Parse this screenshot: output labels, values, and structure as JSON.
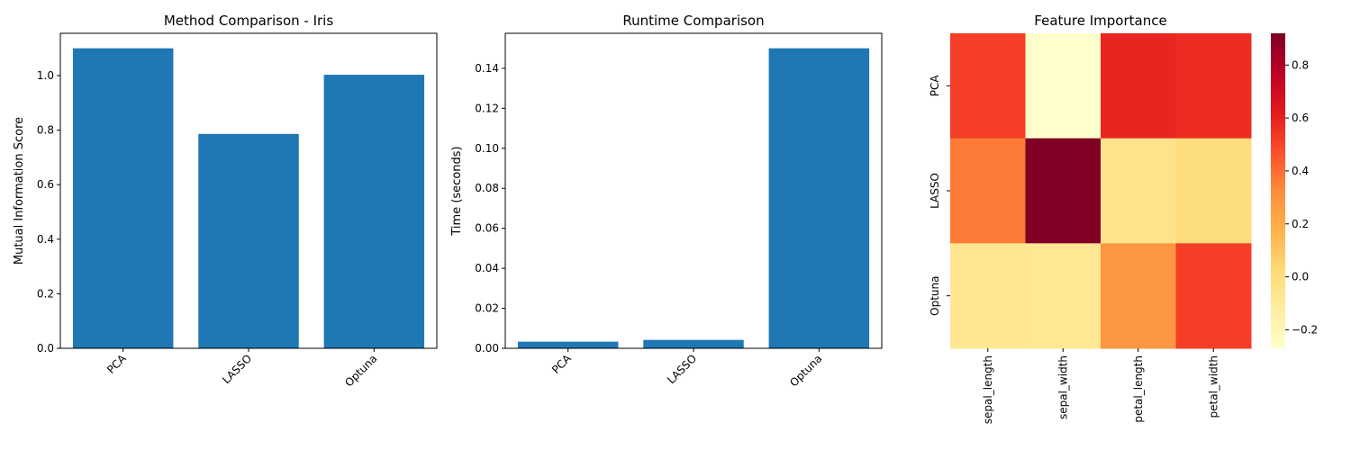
{
  "chart_data": [
    {
      "type": "bar",
      "title": "Method Comparison - Iris",
      "xlabel": "",
      "ylabel": "Mutual Information Score",
      "categories": [
        "PCA",
        "LASSO",
        "Optuna"
      ],
      "values": [
        1.1,
        0.786,
        1.003
      ],
      "ylim": [
        0,
        1.155
      ],
      "yticks": [
        "0.0",
        "0.2",
        "0.4",
        "0.6",
        "0.8",
        "1.0"
      ],
      "ytick_values": [
        0,
        0.2,
        0.4,
        0.6,
        0.8,
        1.0
      ],
      "color": "#1f77b4",
      "grid": false
    },
    {
      "type": "bar",
      "title": "Runtime Comparison",
      "xlabel": "",
      "ylabel": "Time (seconds)",
      "categories": [
        "PCA",
        "LASSO",
        "Optuna"
      ],
      "values": [
        0.0033,
        0.0042,
        0.15
      ],
      "ylim": [
        0,
        0.1575
      ],
      "yticks": [
        "0.00",
        "0.02",
        "0.04",
        "0.06",
        "0.08",
        "0.10",
        "0.12",
        "0.14"
      ],
      "ytick_values": [
        0,
        0.02,
        0.04,
        0.06,
        0.08,
        0.1,
        0.12,
        0.14
      ],
      "color": "#1f77b4",
      "grid": false
    },
    {
      "type": "heatmap",
      "title": "Feature Importance",
      "rows": [
        "PCA",
        "LASSO",
        "Optuna"
      ],
      "columns": [
        "sepal_length",
        "sepal_width",
        "petal_length",
        "petal_width"
      ],
      "values": [
        [
          0.52,
          -0.27,
          0.59,
          0.57
        ],
        [
          0.37,
          0.92,
          -0.05,
          0.0
        ],
        [
          -0.07,
          -0.08,
          0.29,
          0.52
        ]
      ],
      "colormap": "YlOrRd",
      "vmin": -0.27,
      "vmax": 0.92,
      "colorbar_ticks": [
        "−0.2",
        "0.0",
        "0.2",
        "0.4",
        "0.6",
        "0.8"
      ],
      "colorbar_tick_values": [
        -0.2,
        0.0,
        0.2,
        0.4,
        0.6,
        0.8
      ]
    }
  ]
}
